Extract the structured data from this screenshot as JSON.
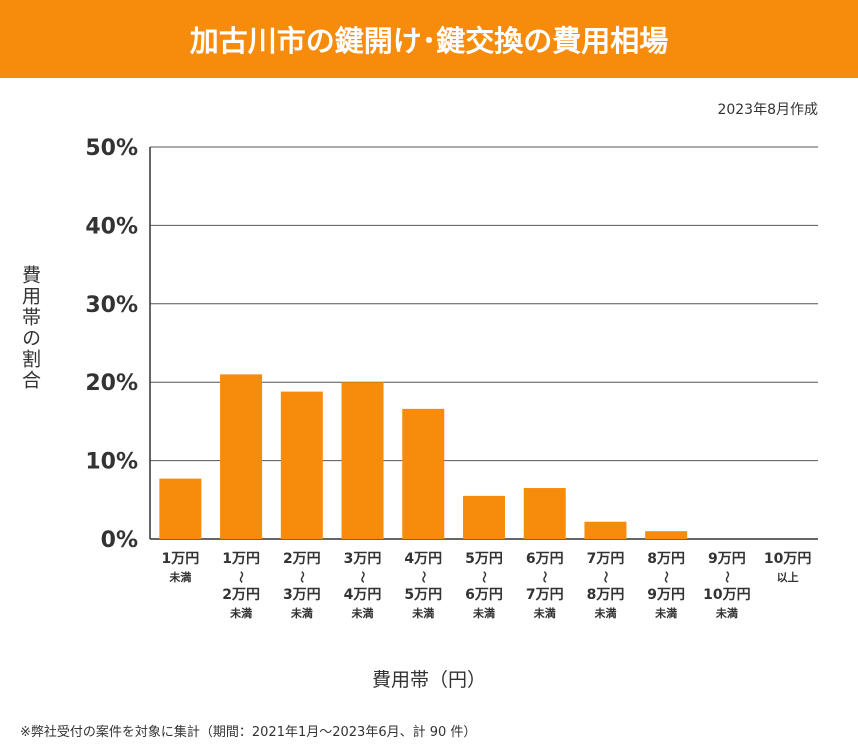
{
  "header": {
    "title": "加古川市の鍵開け･鍵交換の費用相場"
  },
  "date_note": "2023年8月作成",
  "footnote": "※弊社受付の案件を対象に集計（期間：2021年1月～2023年6月、計 90 件）",
  "colors": {
    "bar": "#f68b0c",
    "header": "#f68b0c",
    "grid": "#555555"
  },
  "chart_data": {
    "type": "bar",
    "title": "",
    "xlabel": "費用帯（円）",
    "ylabel": "費用帯の割合",
    "ylim": [
      0,
      50
    ],
    "yticks": [
      "0%",
      "10%",
      "20%",
      "30%",
      "40%",
      "50%"
    ],
    "grid": true,
    "categories": [
      {
        "lines": [
          "1万円",
          "未満"
        ]
      },
      {
        "lines": [
          "1万円",
          "〜",
          "2万円",
          "未満"
        ]
      },
      {
        "lines": [
          "2万円",
          "〜",
          "3万円",
          "未満"
        ]
      },
      {
        "lines": [
          "3万円",
          "〜",
          "4万円",
          "未満"
        ]
      },
      {
        "lines": [
          "4万円",
          "〜",
          "5万円",
          "未満"
        ]
      },
      {
        "lines": [
          "5万円",
          "〜",
          "6万円",
          "未満"
        ]
      },
      {
        "lines": [
          "6万円",
          "〜",
          "7万円",
          "未満"
        ]
      },
      {
        "lines": [
          "7万円",
          "〜",
          "8万円",
          "未満"
        ]
      },
      {
        "lines": [
          "8万円",
          "〜",
          "9万円",
          "未満"
        ]
      },
      {
        "lines": [
          "9万円",
          "〜",
          "10万円",
          "未満"
        ]
      },
      {
        "lines": [
          "10万円",
          "以上"
        ]
      }
    ],
    "values": [
      7.7,
      21.0,
      18.8,
      20.0,
      16.6,
      5.5,
      6.5,
      2.2,
      1.0,
      0,
      0
    ]
  }
}
